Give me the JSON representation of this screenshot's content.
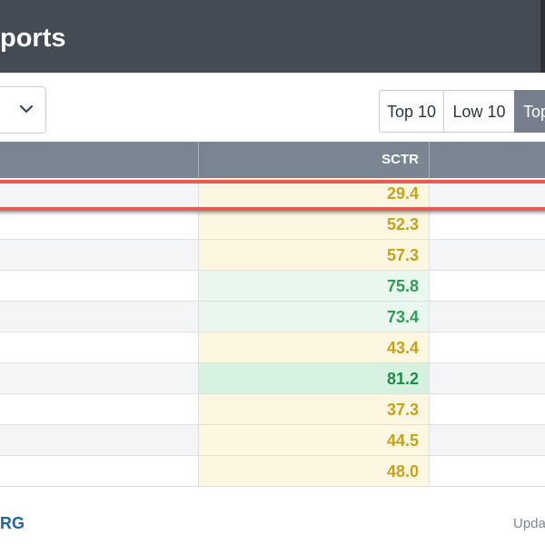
{
  "header": {
    "title": "ports"
  },
  "toolbar": {
    "select_chevron_icon": "chevron-down-icon",
    "buttons": [
      {
        "label": "Top 10",
        "active": false
      },
      {
        "label": "Low 10",
        "active": false
      },
      {
        "label": "Top",
        "active": true
      }
    ]
  },
  "table": {
    "columns": {
      "sctr": "SCTR"
    },
    "rows": [
      {
        "sctr": "29.4",
        "level": "mid"
      },
      {
        "sctr": "52.3",
        "level": "mid"
      },
      {
        "sctr": "57.3",
        "level": "mid"
      },
      {
        "sctr": "75.8",
        "level": "high"
      },
      {
        "sctr": "73.4",
        "level": "high"
      },
      {
        "sctr": "43.4",
        "level": "mid"
      },
      {
        "sctr": "81.2",
        "level": "top"
      },
      {
        "sctr": "37.3",
        "level": "mid"
      },
      {
        "sctr": "44.5",
        "level": "mid"
      },
      {
        "sctr": "48.0",
        "level": "mid"
      }
    ]
  },
  "footer": {
    "left_text": "RG",
    "right_text": "Upda"
  },
  "colors": {
    "header_bg": "#444b55",
    "table_header_bg": "#7a8592",
    "active_button_bg": "#767f8b",
    "sctr_mid_text": "#c6a21a",
    "sctr_high_text": "#2f9d55",
    "highlight_border": "#e85b52",
    "link_blue": "#1e65a7"
  }
}
